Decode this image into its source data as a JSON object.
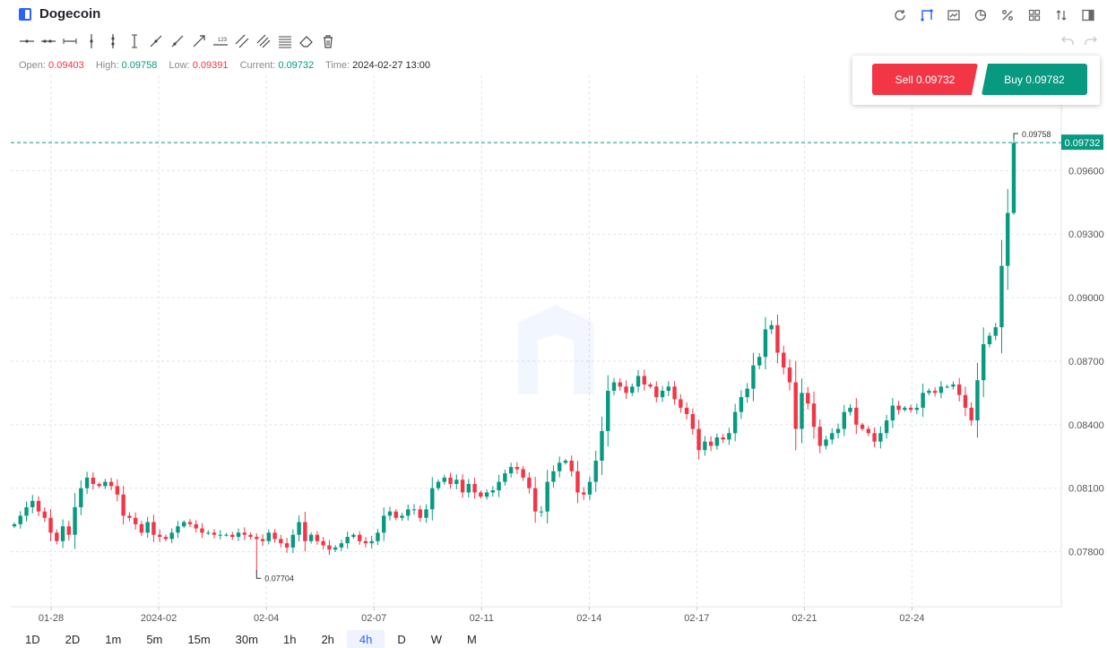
{
  "header": {
    "title": "Dogecoin",
    "top_icons": [
      "refresh-icon",
      "drawing-mode-icon",
      "chart-type-icon",
      "pie-icon",
      "percent-icon",
      "indicators-icon",
      "sort-icon",
      "sidebar-toggle-icon"
    ]
  },
  "toolbar": {
    "tools": [
      "horizontal-line-icon",
      "horizontal-ray-icon",
      "horizontal-segment-icon",
      "vertical-line-icon",
      "vertical-ray-icon",
      "vertical-segment-icon",
      "trend-line-icon",
      "ray-line-icon",
      "arrow-line-icon",
      "price-line-icon",
      "parallel-channel-icon",
      "price-channel-icon",
      "fibonacci-icon",
      "eraser-icon",
      "trash-icon"
    ]
  },
  "ohlc": {
    "open_label": "Open:",
    "open": "0.09403",
    "high_label": "High:",
    "high": "0.09758",
    "low_label": "Low:",
    "low": "0.09391",
    "current_label": "Current:",
    "current": "0.09732",
    "time_label": "Time:",
    "time": "2024-02-27 13:00"
  },
  "trade": {
    "sell_label": "Sell 0.09732",
    "buy_label": "Buy 0.09782"
  },
  "intervals": [
    "1D",
    "2D",
    "1m",
    "5m",
    "15m",
    "30m",
    "1h",
    "2h",
    "4h",
    "D",
    "W",
    "M"
  ],
  "active_interval": "4h",
  "colors": {
    "up": "#089981",
    "down": "#f23645",
    "grid": "#e0e3eb",
    "accent": "#2962ff"
  },
  "chart_data": {
    "type": "candlestick",
    "y_ticks": [
      "0.07800",
      "0.08100",
      "0.08400",
      "0.08700",
      "0.09000",
      "0.09300",
      "0.09600"
    ],
    "x_ticks": [
      "01-28",
      "2024-02",
      "02-04",
      "02-07",
      "02-11",
      "02-14",
      "02-17",
      "02-21",
      "02-24"
    ],
    "ylim": [
      0.0754,
      0.1005
    ],
    "current_price": "0.09732",
    "high_marker": "0.09758",
    "low_marker": "0.07704",
    "grid": true,
    "closes": [
      0.0793,
      0.0797,
      0.0801,
      0.0804,
      0.0799,
      0.0796,
      0.0789,
      0.0785,
      0.0792,
      0.0788,
      0.0801,
      0.081,
      0.0815,
      0.0812,
      0.0811,
      0.0813,
      0.0811,
      0.0807,
      0.0797,
      0.0796,
      0.0793,
      0.0789,
      0.0794,
      0.0788,
      0.0787,
      0.0786,
      0.0789,
      0.0792,
      0.0794,
      0.0793,
      0.0791,
      0.0789,
      0.0789,
      0.0788,
      0.0788,
      0.0788,
      0.0787,
      0.0789,
      0.0788,
      0.0787,
      0.0786,
      0.0785,
      0.0789,
      0.0786,
      0.0784,
      0.0782,
      0.0788,
      0.0794,
      0.0785,
      0.0788,
      0.0785,
      0.0783,
      0.0781,
      0.0782,
      0.0784,
      0.0787,
      0.0788,
      0.0785,
      0.0784,
      0.0785,
      0.0789,
      0.0797,
      0.0799,
      0.0796,
      0.0797,
      0.08,
      0.08,
      0.0796,
      0.08,
      0.081,
      0.0813,
      0.0815,
      0.0812,
      0.0814,
      0.0808,
      0.0812,
      0.0808,
      0.0806,
      0.0808,
      0.0809,
      0.0813,
      0.0817,
      0.082,
      0.0819,
      0.0815,
      0.081,
      0.0799,
      0.0799,
      0.0813,
      0.0818,
      0.0822,
      0.0823,
      0.0818,
      0.0808,
      0.0807,
      0.0813,
      0.0823,
      0.0837,
      0.0856,
      0.086,
      0.0858,
      0.0855,
      0.0858,
      0.0863,
      0.0859,
      0.0858,
      0.0853,
      0.0856,
      0.0858,
      0.0852,
      0.0848,
      0.0845,
      0.0838,
      0.0828,
      0.0832,
      0.083,
      0.0834,
      0.0833,
      0.0836,
      0.0846,
      0.0853,
      0.0857,
      0.0868,
      0.0872,
      0.0885,
      0.0887,
      0.0874,
      0.0867,
      0.086,
      0.0838,
      0.0855,
      0.085,
      0.0839,
      0.083,
      0.0833,
      0.0836,
      0.0838,
      0.0846,
      0.0848,
      0.084,
      0.0838,
      0.0836,
      0.0832,
      0.0836,
      0.0842,
      0.0849,
      0.0847,
      0.0848,
      0.0847,
      0.0848,
      0.0855,
      0.0856,
      0.0855,
      0.0858,
      0.0858,
      0.0859,
      0.0854,
      0.0848,
      0.0842,
      0.0861,
      0.0878,
      0.0882,
      0.0886,
      0.0915,
      0.094,
      0.0973
    ]
  }
}
